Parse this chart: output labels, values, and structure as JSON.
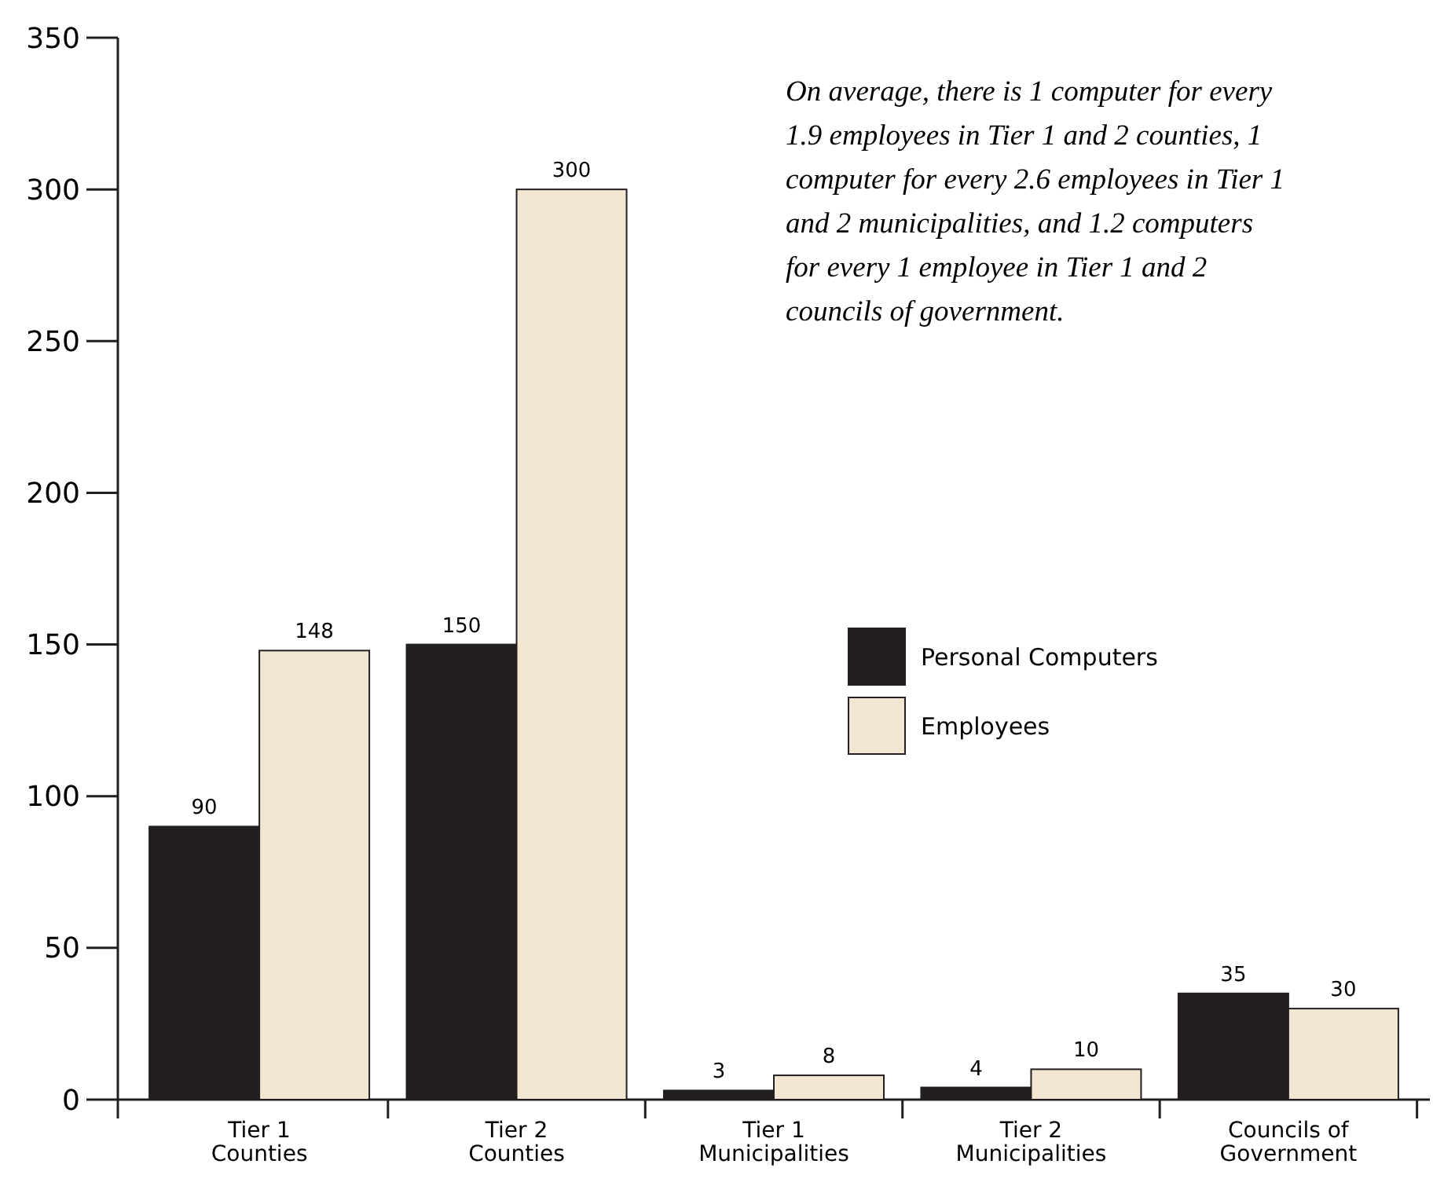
{
  "chart_data": {
    "type": "bar",
    "categories": [
      "Tier 1\nCounties",
      "Tier 2\nCounties",
      "Tier 1\nMunicipalities",
      "Tier 2\nMunicipalities",
      "Councils of\nGovernment"
    ],
    "series": [
      {
        "name": "Personal Computers",
        "color": "#231f20",
        "values": [
          90,
          150,
          3,
          4,
          35
        ]
      },
      {
        "name": "Employees",
        "color": "#f3e6d3",
        "values": [
          148,
          300,
          8,
          10,
          30
        ]
      }
    ],
    "ylim": [
      0,
      350
    ],
    "yticks": [
      0,
      50,
      100,
      150,
      200,
      250,
      300,
      350
    ],
    "data_labels": true,
    "legend": "right",
    "grid": false,
    "annotations": [
      "On average, there is 1 computer for every 1.9 employees in Tier 1 and 2 counties, 1 computer for every 2.6 employees in Tier 1 and 2 municipalities, and 1.2 computers for every 1 employee in Tier 1 and 2 councils of government."
    ]
  }
}
